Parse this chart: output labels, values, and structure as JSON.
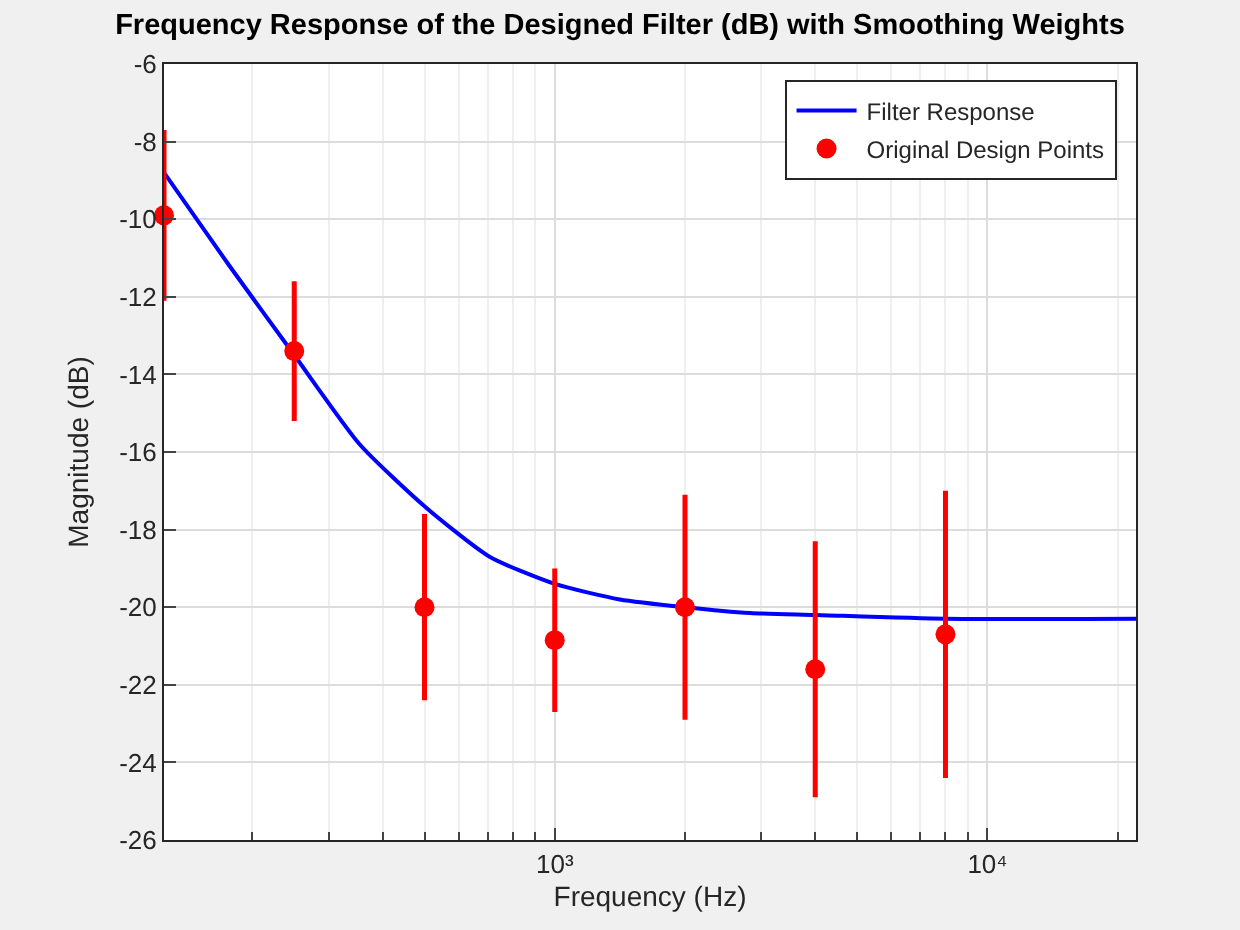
{
  "chart_data": {
    "type": "line",
    "title": "Frequency Response of the Designed Filter (dB) with Smoothing Weights",
    "xlabel": "Frequency (Hz)",
    "ylabel": "Magnitude (dB)",
    "log": "x",
    "xlim": [
      125,
      22050
    ],
    "xticks": [
      {
        "value": 1000,
        "label": "10³"
      },
      {
        "value": 10000,
        "label": "10⁴"
      }
    ],
    "ylim": [
      -26,
      -6
    ],
    "yticks": [
      -26,
      -24,
      -22,
      -20,
      -18,
      -16,
      -14,
      -12,
      -10,
      -8,
      -6
    ],
    "grid": true,
    "legend": "top right",
    "series": [
      {
        "name": "Filter Response",
        "color": "#0000ff",
        "line_style": "solid",
        "marker": "none",
        "x": [
          125,
          177,
          250,
          354,
          500,
          707,
          1000,
          1414,
          2000,
          2828,
          4000,
          8000,
          22050
        ],
        "values": [
          -8.8,
          -11.2,
          -13.5,
          -15.8,
          -17.4,
          -18.7,
          -19.4,
          -19.8,
          -20.0,
          -20.15,
          -20.2,
          -20.3,
          -20.3
        ]
      },
      {
        "name": "Original Design Points",
        "type": "scatter",
        "color": "#ff0000",
        "marker": "circle",
        "x": [
          125,
          250,
          500,
          1000,
          2000,
          4000,
          8000
        ],
        "values": [
          -9.9,
          -13.4,
          -20.0,
          -20.85,
          -20.0,
          -21.6,
          -20.7
        ],
        "errors": [
          [
            -12.1,
            -7.7
          ],
          [
            -15.2,
            -11.6
          ],
          [
            -22.4,
            -17.6
          ],
          [
            -22.7,
            -19.0
          ],
          [
            -22.9,
            -17.1
          ],
          [
            -24.9,
            -18.3
          ],
          [
            -24.4,
            -17.0
          ]
        ]
      }
    ]
  }
}
